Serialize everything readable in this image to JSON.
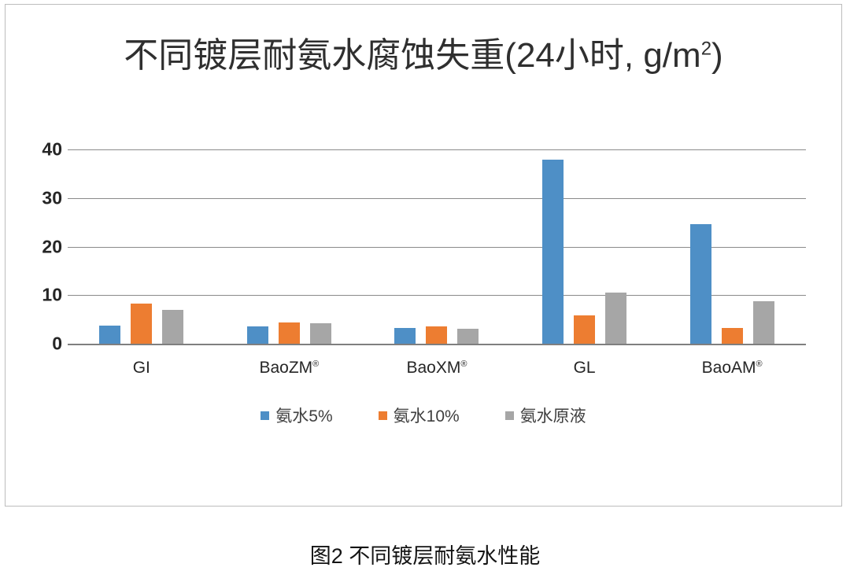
{
  "chart_data": {
    "type": "bar",
    "title_main": "不同镀层耐氨水腐蚀失重(24小时, g/m",
    "title_sup": "2",
    "title_close": ")",
    "ylim": [
      0,
      40
    ],
    "y_ticks": [
      40,
      30,
      20,
      10,
      0
    ],
    "grid": true,
    "legend_position": "bottom",
    "categories": [
      {
        "label": "GI",
        "sup": ""
      },
      {
        "label": "BaoZM",
        "sup": "®"
      },
      {
        "label": "BaoXM",
        "sup": "®"
      },
      {
        "label": "GL",
        "sup": ""
      },
      {
        "label": "BaoAM",
        "sup": "®"
      }
    ],
    "series": [
      {
        "name": "氨水5%",
        "color": "#4E8FC6",
        "values": [
          3.8,
          3.6,
          3.3,
          37.9,
          24.6
        ]
      },
      {
        "name": "氨水10%",
        "color": "#ED7D31",
        "values": [
          8.2,
          4.4,
          3.6,
          5.9,
          3.3
        ]
      },
      {
        "name": "氨水原液",
        "color": "#A6A6A6",
        "values": [
          7.0,
          4.2,
          3.0,
          10.5,
          8.7
        ]
      }
    ]
  },
  "caption": "图2 不同镀层耐氨水性能"
}
